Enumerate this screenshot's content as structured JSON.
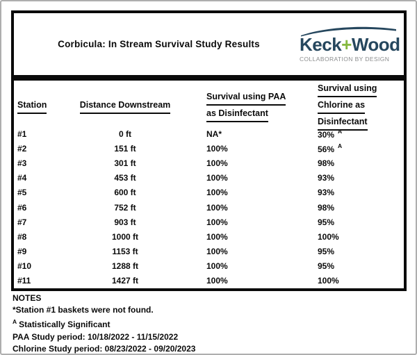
{
  "header": {
    "title": "Corbicula: In Stream Survival Study Results",
    "logo": {
      "brand_part1": "Keck",
      "brand_plus": "+",
      "brand_part2": "Wood",
      "tagline": "COLLABORATION BY DESIGN",
      "brand_color": "#26475e",
      "plus_color": "#86b940",
      "tagline_color": "#8b8d8e"
    }
  },
  "table": {
    "border_color": "#0a0a0a",
    "columns": [
      {
        "lines": [
          "Station"
        ]
      },
      {
        "lines": [
          "Distance Downstream"
        ]
      },
      {
        "lines": [
          "Survival using PAA",
          "as Disinfectant"
        ]
      },
      {
        "lines": [
          "Survival using",
          "Chlorine as",
          "Disinfectant"
        ]
      }
    ],
    "rows": [
      {
        "station": "#1",
        "distance": "0 ft",
        "paa": "NA*",
        "chlorine": "30%",
        "chlorine_sup": "A"
      },
      {
        "station": "#2",
        "distance": "151 ft",
        "paa": "100%",
        "chlorine": "56%",
        "chlorine_sup": "A"
      },
      {
        "station": "#3",
        "distance": "301 ft",
        "paa": "100%",
        "chlorine": "98%",
        "chlorine_sup": ""
      },
      {
        "station": "#4",
        "distance": "453 ft",
        "paa": "100%",
        "chlorine": "93%",
        "chlorine_sup": ""
      },
      {
        "station": "#5",
        "distance": "600 ft",
        "paa": "100%",
        "chlorine": "93%",
        "chlorine_sup": ""
      },
      {
        "station": "#6",
        "distance": "752 ft",
        "paa": "100%",
        "chlorine": "98%",
        "chlorine_sup": ""
      },
      {
        "station": "#7",
        "distance": "903 ft",
        "paa": "100%",
        "chlorine": "95%",
        "chlorine_sup": ""
      },
      {
        "station": "#8",
        "distance": "1000 ft",
        "paa": "100%",
        "chlorine": "100%",
        "chlorine_sup": ""
      },
      {
        "station": "#9",
        "distance": "1153 ft",
        "paa": "100%",
        "chlorine": "95%",
        "chlorine_sup": ""
      },
      {
        "station": "#10",
        "distance": "1288 ft",
        "paa": "100%",
        "chlorine": "95%",
        "chlorine_sup": ""
      },
      {
        "station": "#11",
        "distance": "1427 ft",
        "paa": "100%",
        "chlorine": "100%",
        "chlorine_sup": ""
      }
    ]
  },
  "notes": {
    "title": "NOTES",
    "lines": [
      {
        "sup": "",
        "text": "*Station #1 baskets were not found."
      },
      {
        "sup": "A",
        "text": "Statistically Significant"
      },
      {
        "sup": "",
        "text": "PAA Study period: 10/18/2022 - 11/15/2022"
      },
      {
        "sup": "",
        "text": "Chlorine Study period: 08/23/2022 - 09/20/2023"
      }
    ]
  }
}
